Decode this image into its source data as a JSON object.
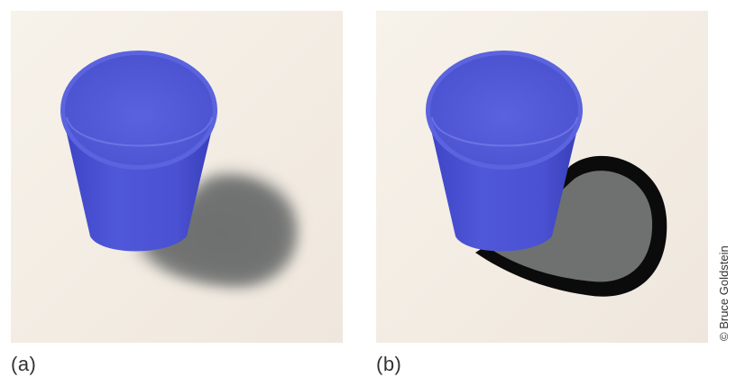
{
  "panels": [
    {
      "label": "(a)",
      "description_icon": "cup-with-soft-shadow"
    },
    {
      "label": "(b)",
      "description_icon": "cup-with-outlined-shadow"
    }
  ],
  "credit": "© Bruce Goldstein",
  "colors": {
    "background": "#f4eee6",
    "cup": "#4a52d6",
    "cup_dark": "#2f35a8",
    "shadow": "#6f7170",
    "outline": "#0a0a0a"
  }
}
